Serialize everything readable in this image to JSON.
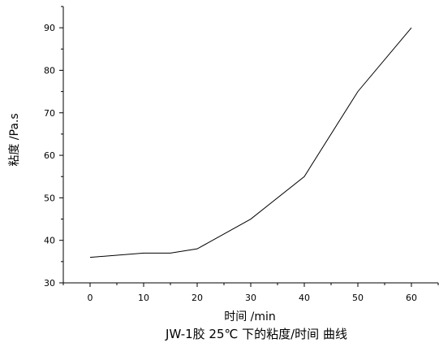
{
  "chart_data": {
    "type": "line",
    "title": "JW-1胶 25℃ 下的粘度/时间 曲线",
    "xlabel": "时间 /min",
    "ylabel": "粘度 /Pa.s",
    "x": [
      0,
      10,
      15,
      20,
      30,
      40,
      50,
      60
    ],
    "series": [
      {
        "values": [
          36,
          37,
          37,
          38,
          45,
          55,
          75,
          90
        ]
      }
    ],
    "xlim": [
      -5,
      65
    ],
    "ylim": [
      30,
      95
    ],
    "xticks": [
      0,
      10,
      20,
      30,
      40,
      50,
      60
    ],
    "yticks": [
      30,
      40,
      50,
      60,
      70,
      80,
      90
    ],
    "grid": false,
    "line_color": "#000000"
  }
}
